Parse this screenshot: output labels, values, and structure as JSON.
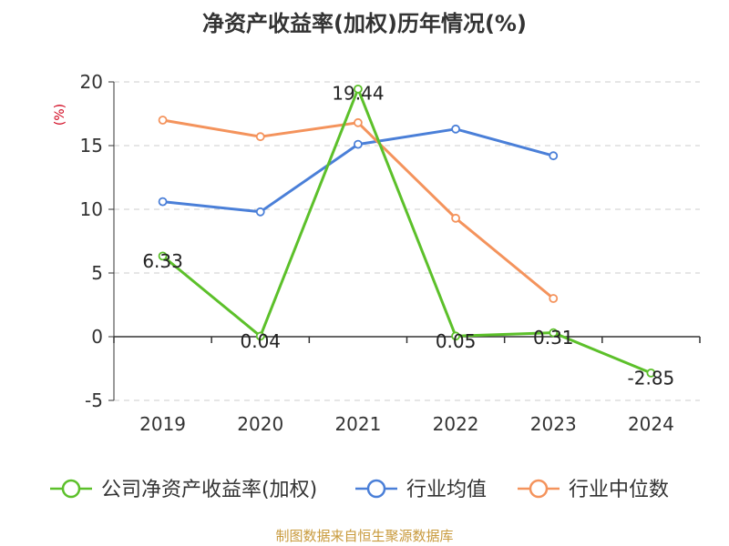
{
  "colors": {
    "company": "#5cc02a",
    "industry_avg": "#4a7fd8",
    "industry_median": "#f4935c",
    "grid": "#cccccc",
    "axis": "#333333",
    "unit": "#d0021b",
    "source": "#c89a3c"
  },
  "chart_data": {
    "type": "line",
    "title": "净资产收益率(加权)历年情况(%)",
    "ylabel": "(%)",
    "categories": [
      "2019",
      "2020",
      "2021",
      "2022",
      "2023",
      "2024"
    ],
    "ylim": [
      -5,
      20
    ],
    "yticks": [
      20,
      15,
      10,
      5,
      0,
      -5
    ],
    "grid": true,
    "legend_position": "bottom",
    "series": [
      {
        "name": "公司净资产收益率(加权)",
        "color_key": "company",
        "values": [
          6.33,
          0.04,
          19.44,
          0.05,
          0.31,
          -2.85
        ],
        "labels": [
          "6.33",
          "0.04",
          "19.44",
          "0.05",
          "0.31",
          "-2.85"
        ]
      },
      {
        "name": "行业均值",
        "color_key": "industry_avg",
        "values": [
          10.6,
          9.8,
          15.1,
          16.3,
          14.2,
          null
        ]
      },
      {
        "name": "行业中位数",
        "color_key": "industry_median",
        "values": [
          17.0,
          15.7,
          16.8,
          9.3,
          3.0,
          null
        ]
      }
    ]
  },
  "source_note": "制图数据来自恒生聚源数据库"
}
